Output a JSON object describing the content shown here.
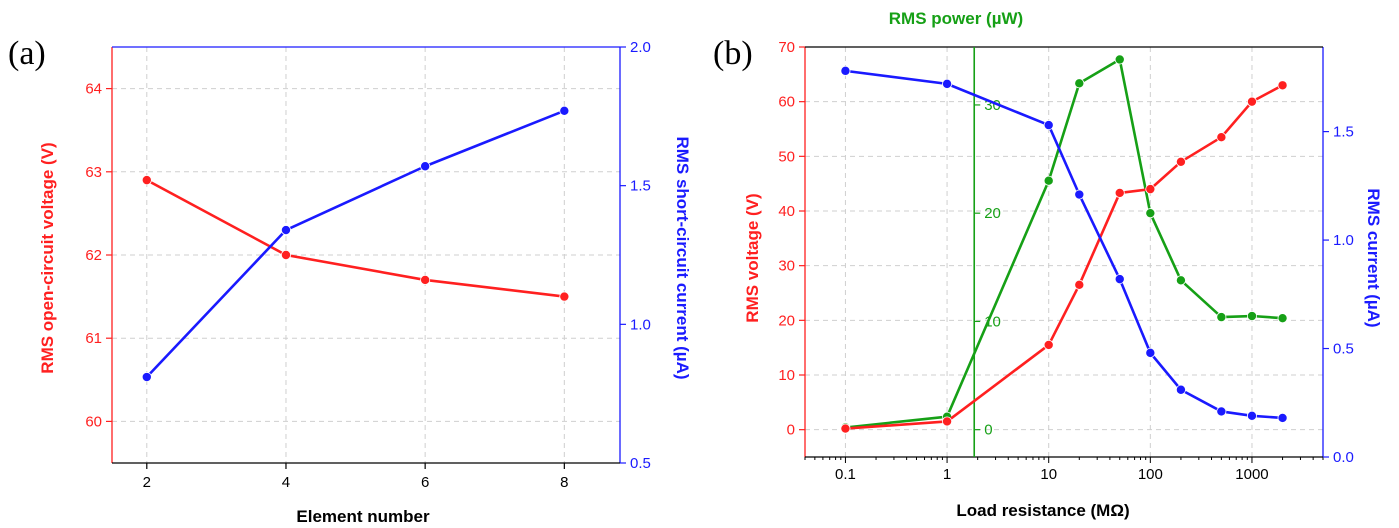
{
  "chart_data": [
    {
      "panel": "(a)",
      "type": "line",
      "x": [
        2,
        4,
        6,
        8
      ],
      "xlabel": "Element number",
      "xticks": [
        "2",
        "4",
        "6",
        "8"
      ],
      "xlim": [
        1.5,
        8.8
      ],
      "y_left": {
        "label": "RMS open-circuit voltage (V)",
        "ylim": [
          59.5,
          64.5
        ],
        "ticks": [
          "60",
          "61",
          "62",
          "63",
          "64"
        ],
        "color": "#ff2020",
        "values": [
          62.9,
          62.0,
          61.7,
          61.5
        ]
      },
      "y_right": {
        "label": "RMS short-circuit current (µA)",
        "ylim": [
          0.5,
          2.0
        ],
        "ticks": [
          "0.5",
          "1.0",
          "1.5",
          "2.0"
        ],
        "color": "#1a1aff",
        "values": [
          0.81,
          1.34,
          1.57,
          1.77
        ]
      },
      "grid": true
    },
    {
      "panel": "(b)",
      "type": "line",
      "x": [
        0.1,
        1,
        10,
        20,
        50,
        100,
        200,
        500,
        1000,
        2000
      ],
      "xscale": "log",
      "xlabel": "Load resistance (MΩ)",
      "xticks": [
        "0.1",
        "1",
        "10",
        "100",
        "1000"
      ],
      "xlim": [
        0.04,
        5000
      ],
      "y_voltage": {
        "label": "RMS voltage (V)",
        "ylim": [
          -5,
          70
        ],
        "ticks": [
          "0",
          "10",
          "20",
          "30",
          "40",
          "50",
          "60",
          "70"
        ],
        "color": "#ff2020",
        "values": [
          0.2,
          1.5,
          15.5,
          26.5,
          43.3,
          44.0,
          49.0,
          53.5,
          60.0,
          63.0
        ]
      },
      "y_power": {
        "label": "RMS power (µW)",
        "ticks": [
          "0",
          "10",
          "20",
          "30"
        ],
        "color": "#16a016",
        "values": [
          0.2,
          1.2,
          23.0,
          32.0,
          34.2,
          20.0,
          13.8,
          10.4,
          10.5,
          10.3
        ]
      },
      "y_current": {
        "label": "RMS current (µA)",
        "ylim": [
          0,
          1.89
        ],
        "ticks": [
          "0.0",
          "0.5",
          "1.0",
          "1.5"
        ],
        "color": "#1a1aff",
        "values": [
          1.78,
          1.72,
          1.53,
          1.21,
          0.82,
          0.48,
          0.31,
          0.21,
          0.19,
          0.18
        ]
      },
      "grid": true
    }
  ]
}
